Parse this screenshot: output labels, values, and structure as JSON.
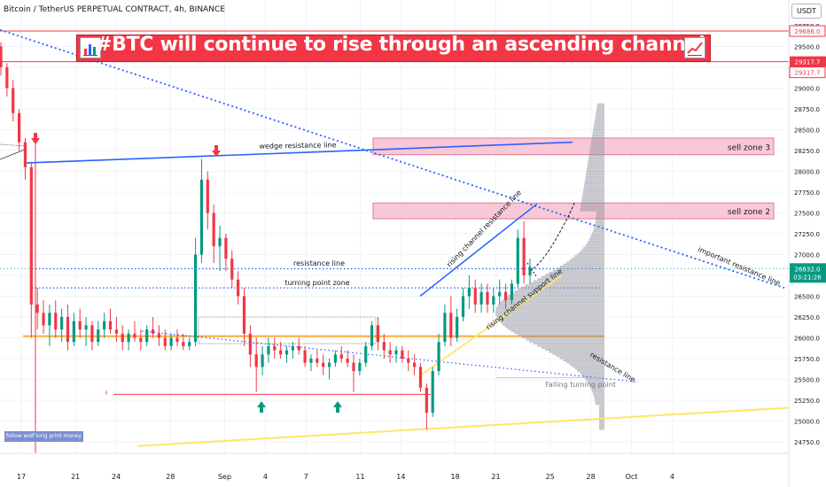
{
  "header": {
    "symbol_line": "Bitcoin / TetherUS PERPETUAL CONTRACT, 4h, BINANCE",
    "currency": "USDT"
  },
  "banner": {
    "title": "#BTC will continue to rise through an ascending channel",
    "left_icon": "bar-chart-emoji-icon",
    "right_icon": "chart-increasing-emoji-icon",
    "color": "#f23645"
  },
  "footer_note": "follow wolf king print money",
  "chart_data": {
    "type": "candlestick",
    "y_axis": {
      "ylim": [
        24650,
        29900
      ],
      "ticks": [
        24750,
        25000,
        25250,
        25500,
        25750,
        26000,
        26250,
        26500,
        26750,
        27000,
        27250,
        27500,
        27750,
        28000,
        28250,
        28500,
        28750,
        29000,
        29250,
        29500,
        29750
      ],
      "labels": [
        "24750.0",
        "25000.0",
        "25250.0",
        "25500.0",
        "25750.0",
        "26000.0",
        "26250.0",
        "26500.0",
        "26750.0",
        "27000.0",
        "27250.0",
        "27500.0",
        "27750.0",
        "28000.0",
        "28250.0",
        "28500.0",
        "28750.0",
        "29000.0",
        "29250.0",
        "29500.0",
        "29750.0"
      ]
    },
    "x_axis": {
      "ticks": [
        {
          "label": "17",
          "day": 0
        },
        {
          "label": "21",
          "day": 4
        },
        {
          "label": "24",
          "day": 7
        },
        {
          "label": "28",
          "day": 11
        },
        {
          "label": "Sep",
          "day": 15
        },
        {
          "label": "4",
          "day": 18
        },
        {
          "label": "7",
          "day": 21
        },
        {
          "label": "11",
          "day": 25
        },
        {
          "label": "14",
          "day": 28
        },
        {
          "label": "18",
          "day": 32
        },
        {
          "label": "21",
          "day": 35
        },
        {
          "label": "25",
          "day": 39
        },
        {
          "label": "28",
          "day": 42
        },
        {
          "label": "Oct",
          "day": 45
        },
        {
          "label": "4",
          "day": 48
        }
      ]
    },
    "price_badges": [
      {
        "value": 29686.0,
        "label": "29686.0",
        "color": "#f23645",
        "style": "outline"
      },
      {
        "value": 29317.7,
        "label": "29317.7",
        "color": "#f23645",
        "style": "filled"
      },
      {
        "value": 29317.7,
        "label": "29317.7",
        "color": "#f23645",
        "style": "outline-low"
      },
      {
        "value": 26832.0,
        "label": "26832.0",
        "sublabel": "03:21:26",
        "color": "#089981",
        "style": "current"
      }
    ],
    "candles_ohlc": [
      [
        29500,
        29550,
        29150,
        29250
      ],
      [
        29250,
        29300,
        28900,
        29000
      ],
      [
        29000,
        29100,
        28600,
        28700
      ],
      [
        28700,
        28750,
        28250,
        28350
      ],
      [
        28350,
        28400,
        27900,
        28050
      ],
      [
        28050,
        28100,
        26000,
        26400
      ],
      [
        26400,
        26600,
        26100,
        26300
      ],
      [
        26300,
        26450,
        26050,
        26150
      ],
      [
        26150,
        26400,
        25900,
        26300
      ],
      [
        26300,
        26450,
        26000,
        26100
      ],
      [
        26100,
        26350,
        25950,
        26250
      ],
      [
        26250,
        26400,
        25850,
        25950
      ],
      [
        25950,
        26300,
        25900,
        26200
      ],
      [
        26200,
        26350,
        26000,
        26100
      ],
      [
        26100,
        26250,
        25900,
        26150
      ],
      [
        26150,
        26200,
        25850,
        25950
      ],
      [
        25950,
        26200,
        25900,
        26100
      ],
      [
        26100,
        26300,
        26000,
        26200
      ],
      [
        26200,
        26350,
        26050,
        26100
      ],
      [
        26100,
        26250,
        25950,
        26050
      ],
      [
        26050,
        26150,
        25850,
        25950
      ],
      [
        25950,
        26100,
        25850,
        26050
      ],
      [
        26050,
        26200,
        25950,
        26000
      ],
      [
        26000,
        26100,
        25850,
        25950
      ],
      [
        25950,
        26150,
        25900,
        26100
      ],
      [
        26100,
        26250,
        26000,
        26050
      ],
      [
        26050,
        26150,
        25900,
        26000
      ],
      [
        26000,
        26100,
        25850,
        25900
      ],
      [
        25900,
        26050,
        25850,
        26000
      ],
      [
        26000,
        26100,
        25900,
        25950
      ],
      [
        25950,
        26050,
        25850,
        25900
      ],
      [
        25900,
        26000,
        25850,
        25950
      ],
      [
        25950,
        27200,
        25900,
        27000
      ],
      [
        27000,
        28150,
        26900,
        27900
      ],
      [
        27900,
        28000,
        27300,
        27500
      ],
      [
        27500,
        27600,
        26900,
        27100
      ],
      [
        27100,
        27350,
        26800,
        27200
      ],
      [
        27200,
        27250,
        26800,
        26950
      ],
      [
        26950,
        27050,
        26600,
        26700
      ],
      [
        26700,
        26800,
        26400,
        26500
      ],
      [
        26500,
        26600,
        25900,
        26050
      ],
      [
        26050,
        26150,
        25650,
        25800
      ],
      [
        25800,
        26000,
        25350,
        25650
      ],
      [
        25650,
        25900,
        25550,
        25800
      ],
      [
        25800,
        26000,
        25700,
        25900
      ],
      [
        25900,
        26000,
        25750,
        25850
      ],
      [
        25850,
        25950,
        25750,
        25800
      ],
      [
        25800,
        25900,
        25700,
        25850
      ],
      [
        25850,
        25950,
        25750,
        25900
      ],
      [
        25900,
        26000,
        25800,
        25850
      ],
      [
        25850,
        25900,
        25650,
        25700
      ],
      [
        25700,
        25800,
        25600,
        25750
      ],
      [
        25750,
        25850,
        25650,
        25700
      ],
      [
        25700,
        25800,
        25550,
        25650
      ],
      [
        25650,
        25750,
        25500,
        25700
      ],
      [
        25700,
        25850,
        25650,
        25800
      ],
      [
        25800,
        25900,
        25700,
        25750
      ],
      [
        25750,
        25850,
        25650,
        25700
      ],
      [
        25700,
        25800,
        25350,
        25600
      ],
      [
        25600,
        25750,
        25550,
        25700
      ],
      [
        25700,
        25950,
        25650,
        25900
      ],
      [
        25900,
        26200,
        25850,
        26150
      ],
      [
        26150,
        26250,
        25850,
        25950
      ],
      [
        25950,
        26050,
        25750,
        25850
      ],
      [
        25850,
        25950,
        25700,
        25800
      ],
      [
        25800,
        25900,
        25700,
        25850
      ],
      [
        25850,
        25900,
        25700,
        25750
      ],
      [
        25750,
        25850,
        25600,
        25700
      ],
      [
        25700,
        25800,
        25550,
        25650
      ],
      [
        25650,
        25700,
        25350,
        25400
      ],
      [
        25400,
        25450,
        24900,
        25100
      ],
      [
        25100,
        25650,
        25050,
        25600
      ],
      [
        25600,
        26050,
        25550,
        25950
      ],
      [
        25950,
        26400,
        25900,
        26300
      ],
      [
        26300,
        26500,
        25900,
        26000
      ],
      [
        26000,
        26350,
        25950,
        26250
      ],
      [
        26250,
        26600,
        26200,
        26500
      ],
      [
        26500,
        26750,
        26350,
        26600
      ],
      [
        26600,
        26700,
        26300,
        26400
      ],
      [
        26400,
        26650,
        26300,
        26550
      ],
      [
        26550,
        26650,
        26300,
        26400
      ],
      [
        26400,
        26600,
        26300,
        26500
      ],
      [
        26500,
        26700,
        26400,
        26550
      ],
      [
        26550,
        26650,
        26350,
        26450
      ],
      [
        26450,
        26700,
        26400,
        26650
      ],
      [
        26650,
        27300,
        26600,
        27200
      ],
      [
        27200,
        27400,
        26650,
        26750
      ],
      [
        26750,
        26950,
        26650,
        26850
      ]
    ],
    "horizontal_lines": [
      {
        "value": 29686,
        "color": "#f23645",
        "style": "solid"
      },
      {
        "value": 29317.7,
        "color": "#f23645",
        "style": "solid"
      },
      {
        "value": 26832,
        "color": "#089981",
        "style": "dotted-price"
      },
      {
        "value": 26830,
        "color": "#2962ff",
        "style": "dotted",
        "label": "resistance line"
      },
      {
        "value": 26600,
        "color": "#2962ff",
        "style": "dotted",
        "label": "turning point zone"
      },
      {
        "value": 26020,
        "color": "#ff9800",
        "style": "solid"
      }
    ],
    "zones": [
      {
        "label": "sell zone 3",
        "y1": 28200,
        "y2": 28400
      },
      {
        "label": "sell zone 2",
        "y1": 27430,
        "y2": 27620
      }
    ],
    "annotations": [
      "wedge resistance line",
      "rising channel resistance line",
      "rising channel support line",
      "resistance line",
      "Falling turning point",
      "important resistance line"
    ],
    "volume_profile": {
      "poc": 26300,
      "range": [
        24900,
        28800
      ]
    }
  }
}
